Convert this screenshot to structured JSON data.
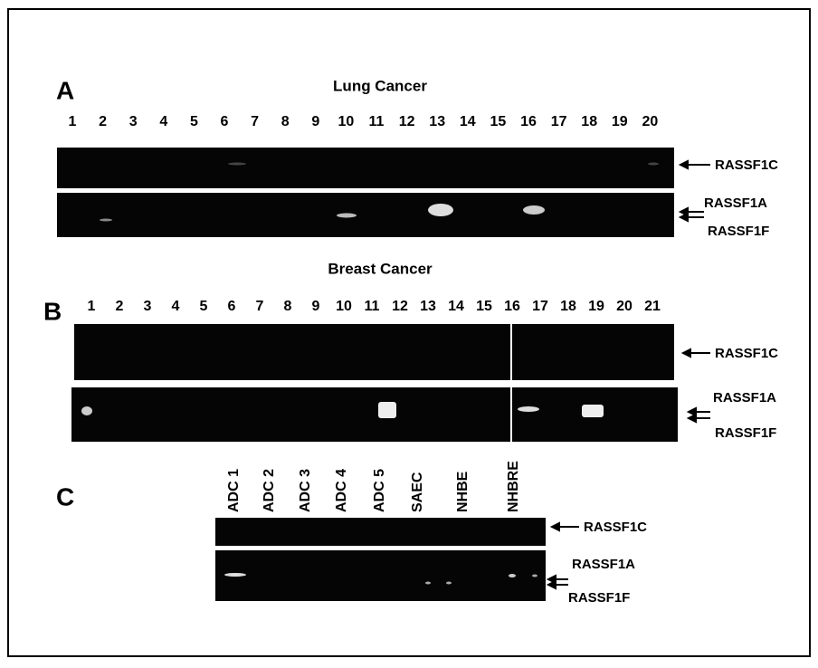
{
  "panels": [
    {
      "letter": "A",
      "title": "Lung Cancer",
      "lanes": [
        "1",
        "2",
        "3",
        "4",
        "5",
        "6",
        "7",
        "8",
        "9",
        "10",
        "11",
        "12",
        "13",
        "14",
        "15",
        "16",
        "17",
        "18",
        "19",
        "20"
      ],
      "bands": [
        "RASSF1C",
        "RASSF1A",
        "RASSF1F"
      ]
    },
    {
      "letter": "B",
      "title": "Breast Cancer",
      "lanes": [
        "1",
        "2",
        "3",
        "4",
        "5",
        "6",
        "7",
        "8",
        "9",
        "10",
        "11",
        "12",
        "13",
        "14",
        "15",
        "16",
        "17",
        "18",
        "19",
        "20",
        "21"
      ],
      "bands": [
        "RASSF1C",
        "RASSF1A",
        "RASSF1F"
      ]
    },
    {
      "letter": "C",
      "lanes": [
        "ADC 1",
        "ADC 2",
        "ADC 3",
        "ADC 4",
        "ADC 5",
        "SAEC",
        "NHBE",
        "NHBRE"
      ],
      "bands": [
        "RASSF1C",
        "RASSF1A",
        "RASSF1F"
      ]
    }
  ]
}
